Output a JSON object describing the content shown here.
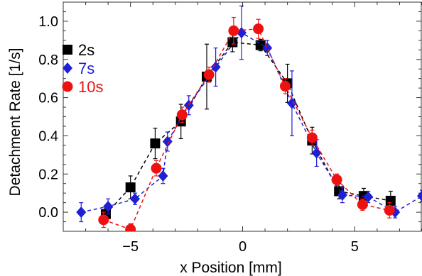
{
  "chart_data": {
    "type": "scatter",
    "title": "",
    "xlabel": "x Position [mm]",
    "ylabel": "Detachment Rate [1/s]",
    "xlim": [
      -8.0,
      8.0
    ],
    "ylim": [
      -0.1,
      1.1
    ],
    "xticks": [
      -5,
      0,
      5
    ],
    "xtick_labels": [
      "−5",
      "0",
      "5"
    ],
    "yticks": [
      0.0,
      0.2,
      0.4,
      0.6,
      0.8,
      1.0
    ],
    "ytick_labels": [
      "0.0",
      "0.2",
      "0.4",
      "0.6",
      "0.8",
      "1.0"
    ],
    "grid": false,
    "legend_position": "top-left",
    "series": [
      {
        "name": "2s",
        "color": "#000000",
        "marker": "square",
        "points": [
          {
            "x": -6.1,
            "y": -0.01,
            "err": 0.03
          },
          {
            "x": -5.0,
            "y": 0.13,
            "err": 0.06
          },
          {
            "x": -3.9,
            "y": 0.36,
            "err": 0.08
          },
          {
            "x": -2.75,
            "y": 0.475,
            "err": 0.09
          },
          {
            "x": -1.6,
            "y": 0.71,
            "err": 0.17
          },
          {
            "x": -0.45,
            "y": 0.89,
            "err": 0.05
          },
          {
            "x": 0.8,
            "y": 0.875,
            "err": 0.03
          },
          {
            "x": 2.0,
            "y": 0.675,
            "err": 0.1
          },
          {
            "x": 3.1,
            "y": 0.375,
            "err": 0.07
          },
          {
            "x": 4.3,
            "y": 0.11,
            "err": 0.04
          },
          {
            "x": 5.4,
            "y": 0.085,
            "err": 0.04
          },
          {
            "x": 6.6,
            "y": 0.06,
            "err": 0.05
          }
        ]
      },
      {
        "name": "7s",
        "color": "#1f1fd6",
        "marker": "diamond",
        "points": [
          {
            "x": -7.2,
            "y": 0.0,
            "err": 0.05
          },
          {
            "x": -6.0,
            "y": 0.03,
            "err": 0.04
          },
          {
            "x": -4.8,
            "y": 0.07,
            "err": 0.03
          },
          {
            "x": -3.55,
            "y": 0.19,
            "err": 0.04
          },
          {
            "x": -3.35,
            "y": 0.37,
            "err": 0.05
          },
          {
            "x": -2.4,
            "y": 0.56,
            "err": 0.05
          },
          {
            "x": -1.2,
            "y": 0.76,
            "err": 0.1
          },
          {
            "x": -0.05,
            "y": 0.94,
            "err": 0.14
          },
          {
            "x": 1.1,
            "y": 0.86,
            "err": 0.04
          },
          {
            "x": 2.2,
            "y": 0.57,
            "err": 0.17
          },
          {
            "x": 3.3,
            "y": 0.31,
            "err": 0.07
          },
          {
            "x": 4.45,
            "y": 0.09,
            "err": 0.04
          },
          {
            "x": 5.6,
            "y": 0.08,
            "err": 0.03
          },
          {
            "x": 6.8,
            "y": 0.0,
            "err": 0.03
          },
          {
            "x": 8.0,
            "y": 0.085,
            "err": 0.03
          }
        ]
      },
      {
        "name": "10s",
        "color": "#ee1111",
        "marker": "circle",
        "points": [
          {
            "x": -6.2,
            "y": -0.04,
            "err": 0.04
          },
          {
            "x": -5.0,
            "y": -0.09,
            "err": 0.03
          },
          {
            "x": -3.85,
            "y": 0.23,
            "err": 0.04
          },
          {
            "x": -2.7,
            "y": 0.51,
            "err": 0.04
          },
          {
            "x": -1.5,
            "y": 0.72,
            "err": 0.04
          },
          {
            "x": -0.4,
            "y": 0.95,
            "err": 0.07
          },
          {
            "x": 0.7,
            "y": 0.96,
            "err": 0.05
          },
          {
            "x": 1.9,
            "y": 0.66,
            "err": 0.04
          },
          {
            "x": 3.1,
            "y": 0.39,
            "err": 0.04
          },
          {
            "x": 4.2,
            "y": 0.17,
            "err": 0.03
          },
          {
            "x": 5.35,
            "y": 0.04,
            "err": 0.03
          },
          {
            "x": 6.55,
            "y": 0.01,
            "err": 0.04
          }
        ]
      }
    ]
  }
}
